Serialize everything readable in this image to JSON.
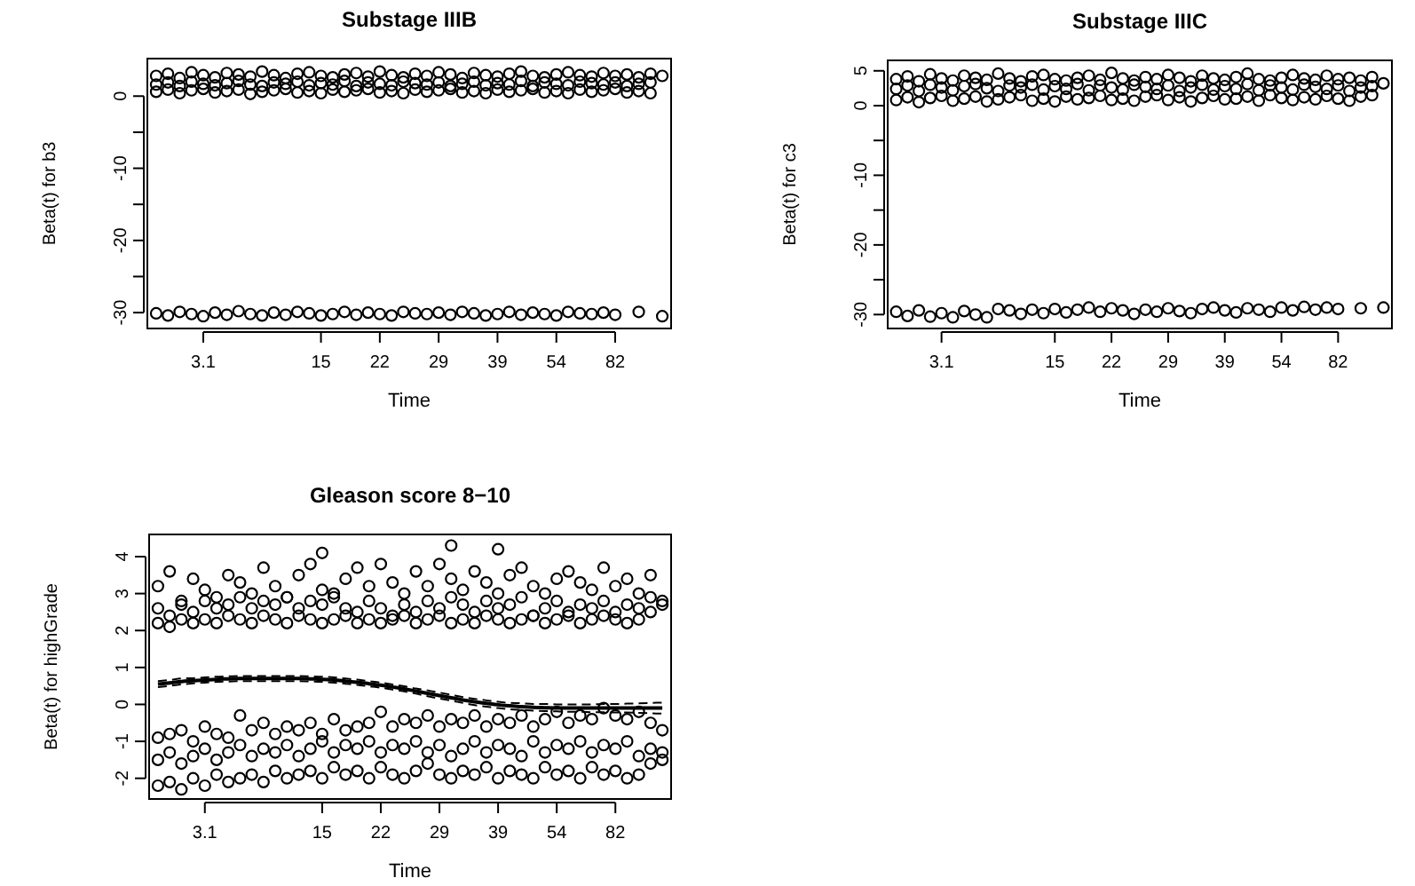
{
  "chart_data": [
    {
      "type": "scatter",
      "title": "Substage IIIB",
      "xlabel": "Time",
      "ylabel": "Beta(t) for b3",
      "marker": "circle",
      "categories": [
        null,
        null,
        null,
        null,
        "3.1",
        null,
        null,
        null,
        null,
        null,
        null,
        null,
        null,
        null,
        "15",
        null,
        null,
        null,
        null,
        "22",
        null,
        null,
        null,
        null,
        "29",
        null,
        null,
        null,
        null,
        "39",
        null,
        null,
        null,
        null,
        "54",
        null,
        null,
        null,
        null,
        "82",
        null,
        null,
        null,
        null
      ],
      "ylim": [
        -32.2,
        5.2
      ],
      "yticks": [
        -30,
        {
          "value": -25,
          "label": null
        },
        -20,
        {
          "value": -15,
          "label": null
        },
        -10,
        {
          "value": -5,
          "label": null
        },
        0
      ],
      "series": [
        {
          "color": "#000000",
          "values": [
            2.8,
            3.1,
            2.5,
            3.3,
            2.9,
            2.6,
            3.2,
            3.0,
            2.7,
            3.4,
            2.9,
            2.5,
            3.1,
            3.3,
            2.8,
            2.6,
            3.0,
            3.2,
            2.7,
            3.4,
            2.9,
            2.6,
            3.1,
            2.8,
            3.3,
            3.0,
            2.5,
            3.2,
            2.9,
            2.7,
            3.1,
            3.4,
            2.8,
            2.6,
            3.0,
            3.3,
            2.9,
            2.7,
            3.2,
            2.8,
            3.0,
            2.6,
            3.1,
            2.8
          ]
        },
        {
          "color": "#000000",
          "values": [
            1.6,
            1.9,
            1.4,
            2.0,
            1.7,
            1.5,
            1.8,
            2.1,
            1.6,
            1.4,
            1.9,
            1.7,
            2.0,
            1.5,
            1.8,
            1.6,
            2.1,
            1.4,
            1.9,
            1.7,
            1.5,
            2.0,
            1.8,
            1.6,
            1.9,
            1.4,
            1.7,
            2.0,
            1.5,
            1.8,
            1.6,
            2.1,
            1.4,
            1.9,
            1.7,
            1.5,
            2.0,
            1.8,
            1.6,
            1.9,
            1.4,
            1.7,
            1.9,
            null
          ]
        },
        {
          "color": "#000000",
          "values": [
            0.6,
            0.9,
            0.4,
            0.8,
            1.0,
            0.5,
            0.7,
            0.9,
            0.3,
            0.6,
            0.8,
            1.0,
            0.5,
            0.7,
            0.4,
            0.9,
            0.6,
            0.8,
            1.0,
            0.5,
            0.7,
            0.4,
            0.9,
            0.6,
            0.8,
            1.0,
            0.5,
            0.7,
            0.4,
            0.9,
            0.6,
            0.8,
            1.0,
            0.5,
            0.7,
            0.4,
            0.9,
            0.6,
            0.8,
            1.0,
            0.5,
            0.7,
            0.4,
            null
          ]
        },
        {
          "color": "#000000",
          "values": [
            -30.1,
            -30.4,
            -29.9,
            -30.2,
            -30.5,
            -30.0,
            -30.3,
            -29.8,
            -30.2,
            -30.4,
            -30.0,
            -30.3,
            -29.9,
            -30.1,
            -30.4,
            -30.2,
            -29.9,
            -30.3,
            -30.0,
            -30.2,
            -30.4,
            -29.9,
            -30.1,
            -30.2,
            -30.0,
            -30.3,
            -29.9,
            -30.1,
            -30.4,
            -30.2,
            -29.9,
            -30.3,
            -30.0,
            -30.2,
            -30.4,
            -29.9,
            -30.1,
            -30.2,
            -30.0,
            -30.3,
            null,
            -29.9,
            null,
            -30.5
          ]
        }
      ]
    },
    {
      "type": "scatter",
      "title": "Substage IIIC",
      "xlabel": "Time",
      "ylabel": "Beta(t) for c3",
      "marker": "circle",
      "categories": [
        null,
        null,
        null,
        null,
        "3.1",
        null,
        null,
        null,
        null,
        null,
        null,
        null,
        null,
        null,
        "15",
        null,
        null,
        null,
        null,
        "22",
        null,
        null,
        null,
        null,
        "29",
        null,
        null,
        null,
        null,
        "39",
        null,
        null,
        null,
        null,
        "54",
        null,
        null,
        null,
        null,
        "82",
        null,
        null,
        null,
        null
      ],
      "ylim": [
        -32.0,
        6.5
      ],
      "yticks": [
        -30,
        {
          "value": -25,
          "label": null
        },
        -20,
        {
          "value": -15,
          "label": null
        },
        -10,
        {
          "value": -5,
          "label": null
        },
        0,
        5
      ],
      "series": [
        {
          "color": "#000000",
          "values": [
            3.8,
            4.2,
            3.5,
            4.5,
            3.9,
            3.6,
            4.3,
            4.0,
            3.7,
            4.6,
            3.9,
            3.5,
            4.2,
            4.4,
            3.8,
            3.6,
            4.0,
            4.3,
            3.7,
            4.7,
            3.9,
            3.6,
            4.1,
            3.8,
            4.4,
            4.0,
            3.5,
            4.3,
            3.9,
            3.7,
            4.1,
            4.6,
            3.8,
            3.6,
            4.0,
            4.4,
            3.9,
            3.7,
            4.3,
            3.8,
            4.0,
            3.6,
            4.1,
            3.2
          ]
        },
        {
          "color": "#000000",
          "values": [
            2.4,
            2.9,
            2.1,
            3.0,
            2.6,
            2.2,
            2.8,
            3.1,
            2.5,
            2.1,
            2.9,
            2.6,
            3.0,
            2.3,
            2.8,
            2.4,
            3.1,
            2.2,
            2.9,
            2.6,
            2.3,
            3.0,
            2.7,
            2.4,
            2.9,
            2.1,
            2.6,
            3.0,
            2.3,
            2.8,
            2.4,
            3.1,
            2.2,
            2.9,
            2.6,
            2.3,
            3.0,
            2.7,
            2.4,
            2.9,
            2.1,
            2.6,
            2.8,
            null
          ]
        },
        {
          "color": "#000000",
          "values": [
            0.8,
            1.2,
            0.5,
            1.1,
            1.4,
            0.7,
            1.0,
            1.3,
            0.6,
            0.9,
            1.2,
            1.5,
            0.7,
            1.0,
            0.6,
            1.3,
            0.9,
            1.1,
            1.4,
            0.8,
            1.0,
            0.7,
            1.3,
            1.5,
            0.8,
            1.2,
            0.6,
            1.1,
            1.4,
            0.9,
            1.0,
            1.3,
            0.7,
            1.5,
            1.1,
            0.8,
            1.2,
            0.9,
            1.4,
            1.0,
            0.7,
            1.3,
            1.5,
            null
          ]
        },
        {
          "color": "#000000",
          "values": [
            -29.6,
            -30.2,
            -29.4,
            -30.3,
            -29.8,
            -30.4,
            -29.5,
            -30.0,
            -30.4,
            -29.2,
            -29.4,
            -29.9,
            -29.3,
            -29.8,
            -29.2,
            -29.7,
            -29.3,
            -29.0,
            -29.6,
            -29.1,
            -29.4,
            -29.9,
            -29.3,
            -29.6,
            -29.1,
            -29.5,
            -29.8,
            -29.2,
            -29.0,
            -29.4,
            -29.7,
            -29.1,
            -29.3,
            -29.6,
            -29.0,
            -29.4,
            -28.9,
            -29.3,
            -29.0,
            -29.2,
            null,
            -29.1,
            null,
            -29.0
          ]
        }
      ]
    },
    {
      "type": "scatter",
      "title": "Gleason score 8−10",
      "xlabel": "Time",
      "ylabel": "Beta(t) for highGrade",
      "marker": "circle",
      "categories": [
        null,
        null,
        null,
        null,
        "3.1",
        null,
        null,
        null,
        null,
        null,
        null,
        null,
        null,
        null,
        "15",
        null,
        null,
        null,
        null,
        "22",
        null,
        null,
        null,
        null,
        "29",
        null,
        null,
        null,
        null,
        "39",
        null,
        null,
        null,
        null,
        "54",
        null,
        null,
        null,
        null,
        "82",
        null,
        null,
        null,
        null
      ],
      "ylim": [
        -2.56,
        4.6
      ],
      "yticks": [
        -2,
        -1,
        0,
        1,
        2,
        3,
        4
      ],
      "series": [
        {
          "color": "#000000",
          "values": [
            3.2,
            3.6,
            2.8,
            3.4,
            3.1,
            2.9,
            3.5,
            3.3,
            3.0,
            3.7,
            3.2,
            2.9,
            3.5,
            3.8,
            3.1,
            3.0,
            3.4,
            3.7,
            3.2,
            3.8,
            3.3,
            3.0,
            3.6,
            3.2,
            3.8,
            3.4,
            3.1,
            3.6,
            3.3,
            3.0,
            3.5,
            3.7,
            3.2,
            3.0,
            3.4,
            3.6,
            3.3,
            3.1,
            3.7,
            3.2,
            3.4,
            3.0,
            3.5,
            2.8
          ]
        },
        {
          "color": "#000000",
          "values": [
            2.6,
            2.4,
            2.7,
            2.5,
            2.8,
            2.6,
            2.7,
            2.9,
            2.6,
            2.8,
            2.7,
            2.9,
            2.6,
            2.8,
            2.7,
            2.9,
            2.6,
            2.5,
            2.8,
            2.6,
            2.4,
            2.7,
            2.5,
            2.8,
            2.6,
            2.9,
            2.7,
            2.5,
            2.8,
            2.6,
            2.7,
            2.9,
            2.4,
            2.6,
            2.8,
            2.5,
            2.7,
            2.6,
            2.8,
            2.5,
            2.7,
            2.6,
            2.9,
            2.7
          ]
        },
        {
          "color": "#000000",
          "values": [
            2.2,
            2.1,
            2.3,
            2.2,
            2.3,
            2.2,
            2.4,
            2.3,
            2.2,
            2.4,
            2.3,
            2.2,
            2.4,
            2.3,
            2.2,
            2.3,
            2.4,
            2.2,
            2.3,
            2.2,
            2.3,
            2.4,
            2.2,
            2.3,
            2.4,
            2.2,
            2.3,
            2.2,
            2.4,
            2.3,
            2.2,
            2.3,
            2.4,
            2.2,
            2.3,
            2.4,
            2.2,
            2.3,
            2.4,
            2.3,
            2.2,
            2.3,
            2.5,
            null
          ]
        },
        {
          "color": "#000000",
          "values": [
            null,
            null,
            null,
            null,
            null,
            null,
            null,
            null,
            null,
            null,
            null,
            null,
            null,
            null,
            4.1,
            null,
            null,
            null,
            null,
            null,
            null,
            null,
            null,
            null,
            null,
            4.3,
            null,
            null,
            null,
            4.2,
            null,
            null,
            null,
            null,
            null,
            null,
            null,
            null,
            null,
            null,
            null,
            null,
            null,
            null
          ]
        },
        {
          "color": "#000000",
          "values": [
            -0.9,
            -0.8,
            -0.7,
            -1.0,
            -0.6,
            -0.8,
            -0.9,
            -0.3,
            -0.7,
            -0.5,
            -0.8,
            -0.6,
            -0.7,
            -0.5,
            -0.8,
            -0.4,
            -0.7,
            -0.6,
            -0.5,
            -0.2,
            -0.6,
            -0.4,
            -0.5,
            -0.3,
            -0.6,
            -0.4,
            -0.5,
            -0.3,
            -0.6,
            -0.4,
            -0.5,
            -0.3,
            -0.6,
            -0.4,
            -0.2,
            -0.5,
            -0.3,
            -0.4,
            -0.1,
            -0.3,
            -0.4,
            -0.2,
            -0.5,
            -0.7
          ]
        },
        {
          "color": "#000000",
          "values": [
            -1.5,
            -1.3,
            -1.6,
            -1.4,
            -1.2,
            -1.5,
            -1.3,
            -1.1,
            -1.4,
            -1.2,
            -1.3,
            -1.1,
            -1.4,
            -1.2,
            -1.0,
            -1.3,
            -1.1,
            -1.2,
            -1.0,
            -1.3,
            -1.1,
            -1.2,
            -1.0,
            -1.3,
            -1.1,
            -1.4,
            -1.2,
            -1.0,
            -1.3,
            -1.1,
            -1.2,
            -1.4,
            -1.0,
            -1.3,
            -1.1,
            -1.2,
            -1.0,
            -1.3,
            -1.1,
            -1.2,
            -1.0,
            -1.4,
            -1.2,
            -1.3
          ]
        },
        {
          "color": "#000000",
          "values": [
            -2.2,
            -2.1,
            -2.3,
            -2.0,
            -2.2,
            -1.9,
            -2.1,
            -2.0,
            -1.9,
            -2.1,
            -1.8,
            -2.0,
            -1.9,
            -1.8,
            -2.0,
            -1.7,
            -1.9,
            -1.8,
            -2.0,
            -1.7,
            -1.9,
            -2.0,
            -1.8,
            -1.6,
            -1.9,
            -2.0,
            -1.8,
            -1.9,
            -1.7,
            -2.0,
            -1.8,
            -1.9,
            -2.0,
            -1.7,
            -1.9,
            -1.8,
            -2.0,
            -1.7,
            -1.9,
            -1.8,
            -2.0,
            -1.9,
            -1.6,
            -1.5
          ]
        },
        {
          "type": "line",
          "color": "#000000",
          "line_style": "solid",
          "marker": "none",
          "values": [
            0.55,
            0.58,
            0.62,
            0.64,
            0.66,
            0.68,
            0.69,
            0.7,
            0.7,
            0.7,
            0.7,
            0.7,
            0.7,
            0.69,
            0.68,
            0.66,
            0.63,
            0.6,
            0.56,
            0.52,
            0.47,
            0.42,
            0.36,
            0.3,
            0.24,
            0.18,
            0.12,
            0.07,
            0.03,
            -0.01,
            -0.04,
            -0.06,
            -0.08,
            -0.09,
            -0.1,
            -0.1,
            -0.1,
            -0.1,
            -0.1,
            -0.1,
            -0.1,
            -0.1,
            -0.1,
            -0.1
          ]
        },
        {
          "type": "line",
          "color": "#000000",
          "line_style": "dashed",
          "marker": "none",
          "values": [
            0.47,
            0.5,
            0.54,
            0.57,
            0.59,
            0.61,
            0.62,
            0.63,
            0.63,
            0.63,
            0.63,
            0.63,
            0.63,
            0.62,
            0.61,
            0.59,
            0.56,
            0.53,
            0.49,
            0.45,
            0.4,
            0.35,
            0.29,
            0.22,
            0.16,
            0.1,
            0.04,
            -0.02,
            -0.06,
            -0.1,
            -0.13,
            -0.15,
            -0.17,
            -0.18,
            -0.19,
            -0.2,
            -0.2,
            -0.21,
            -0.21,
            -0.22,
            -0.22,
            -0.23,
            -0.24,
            -0.25
          ]
        },
        {
          "type": "line",
          "color": "#000000",
          "line_style": "dashed",
          "marker": "none",
          "values": [
            0.63,
            0.66,
            0.7,
            0.71,
            0.73,
            0.75,
            0.76,
            0.77,
            0.77,
            0.77,
            0.77,
            0.77,
            0.77,
            0.76,
            0.75,
            0.73,
            0.7,
            0.67,
            0.63,
            0.59,
            0.54,
            0.49,
            0.43,
            0.38,
            0.32,
            0.26,
            0.2,
            0.15,
            0.11,
            0.07,
            0.04,
            0.03,
            0.01,
            0.01,
            0,
            0,
            0,
            0,
            0.01,
            0.01,
            0.02,
            0.03,
            0.04,
            0.05
          ]
        }
      ]
    }
  ]
}
